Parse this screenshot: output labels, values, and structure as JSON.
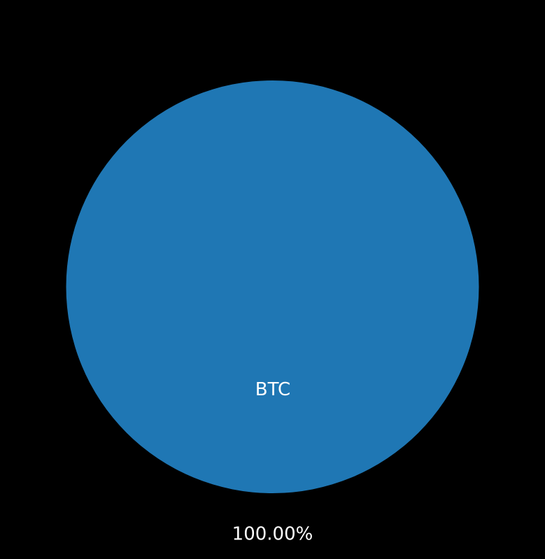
{
  "colors": {
    "background": "#000000",
    "text": "#ffffff"
  },
  "chart_data": {
    "type": "pie",
    "slices": [
      {
        "label": "BTC",
        "value": 100.0,
        "percent_label": "100.00%",
        "color": "#1f77b4"
      }
    ]
  }
}
